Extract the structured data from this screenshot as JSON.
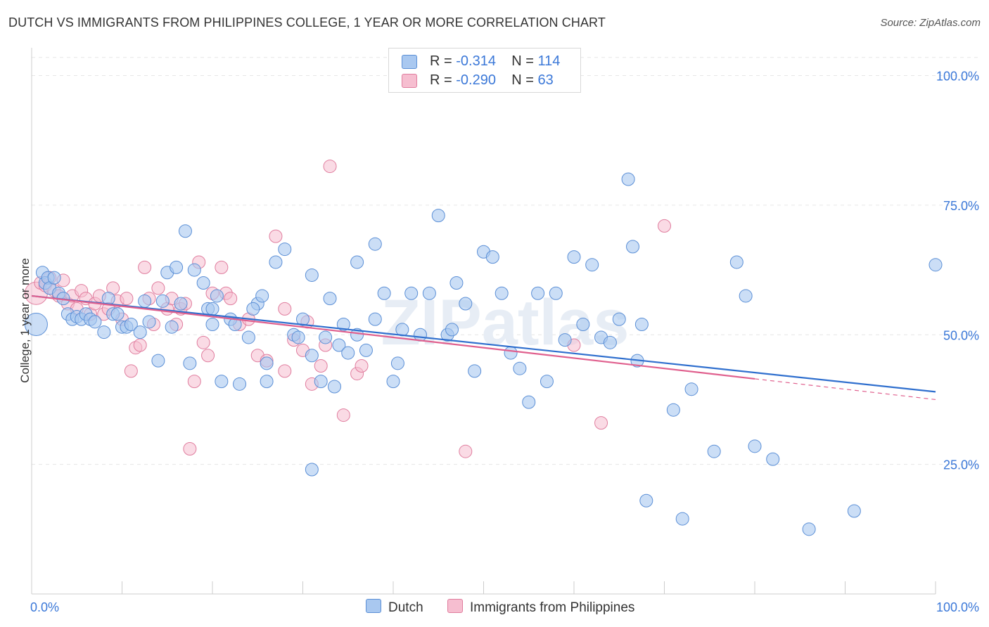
{
  "title": "DUTCH VS IMMIGRANTS FROM PHILIPPINES COLLEGE, 1 YEAR OR MORE CORRELATION CHART",
  "source": "Source: ZipAtlas.com",
  "watermark": "ZIPatlas",
  "legend_top": {
    "row1": {
      "r_label": "R = ",
      "r_value": "-0.314",
      "n_label": "N = ",
      "n_value": "114"
    },
    "row2": {
      "r_label": "R = ",
      "r_value": "-0.290",
      "n_label": "N = ",
      "n_value": "63"
    }
  },
  "legend_bottom": {
    "dutch": "Dutch",
    "philippines": "Immigrants from Philippines"
  },
  "colors": {
    "dutch_fill": "#a9c8f0",
    "dutch_stroke": "#5b8fd6",
    "dutch_line": "#2f6fce",
    "phil_fill": "#f6bed0",
    "phil_stroke": "#e07d9e",
    "phil_line": "#e0608e",
    "accent_text": "#3b78d8",
    "grid": "#e6e6e6"
  },
  "chart_data": {
    "type": "scatter",
    "title": "DUTCH VS IMMIGRANTS FROM PHILIPPINES COLLEGE, 1 YEAR OR MORE CORRELATION CHART",
    "xlabel": "",
    "ylabel": "College, 1 year or more",
    "xlim": [
      0,
      100
    ],
    "ylim": [
      0,
      104
    ],
    "x_tick_labels": [
      "0.0%",
      "100.0%"
    ],
    "y_ticks": [
      25,
      50,
      75,
      100
    ],
    "y_tick_labels": [
      "25.0%",
      "50.0%",
      "75.0%",
      "100.0%"
    ],
    "grid": true,
    "legend_position": "top-center",
    "series": [
      {
        "name": "Dutch",
        "R": -0.314,
        "N": 114,
        "trend": {
          "x": [
            0,
            100
          ],
          "y": [
            57.5,
            39.0
          ]
        },
        "points": [
          [
            0.5,
            52
          ],
          [
            1.2,
            62
          ],
          [
            1.5,
            60
          ],
          [
            1.8,
            61
          ],
          [
            2,
            59
          ],
          [
            2.5,
            61
          ],
          [
            3,
            58
          ],
          [
            3.5,
            57
          ],
          [
            4,
            54
          ],
          [
            4.5,
            53
          ],
          [
            5,
            53.5
          ],
          [
            5.5,
            53
          ],
          [
            6,
            54
          ],
          [
            6.5,
            53
          ],
          [
            7,
            52.5
          ],
          [
            8,
            50.5
          ],
          [
            8.5,
            57
          ],
          [
            9,
            54
          ],
          [
            9.5,
            54
          ],
          [
            10,
            51.5
          ],
          [
            10.5,
            51.5
          ],
          [
            11,
            52
          ],
          [
            12,
            50.5
          ],
          [
            12.5,
            56.5
          ],
          [
            13,
            52.5
          ],
          [
            14,
            45
          ],
          [
            14.5,
            56.5
          ],
          [
            15,
            62
          ],
          [
            15.5,
            51.5
          ],
          [
            16,
            63
          ],
          [
            16.5,
            56
          ],
          [
            17,
            70
          ],
          [
            17.5,
            44.5
          ],
          [
            18,
            62.5
          ],
          [
            19,
            60
          ],
          [
            19.5,
            55
          ],
          [
            20,
            55
          ],
          [
            20.5,
            57.5
          ],
          [
            20,
            52
          ],
          [
            21,
            41
          ],
          [
            22,
            53
          ],
          [
            22.5,
            52
          ],
          [
            23,
            40.5
          ],
          [
            24,
            49.5
          ],
          [
            25,
            56
          ],
          [
            25.5,
            57.5
          ],
          [
            26,
            44.5
          ],
          [
            27,
            64
          ],
          [
            24.5,
            55
          ],
          [
            28,
            66.5
          ],
          [
            29,
            50
          ],
          [
            29.5,
            49.5
          ],
          [
            30,
            53
          ],
          [
            31,
            61.5
          ],
          [
            31,
            46
          ],
          [
            32,
            41
          ],
          [
            32.5,
            49.5
          ],
          [
            33,
            57
          ],
          [
            34,
            48
          ],
          [
            34.5,
            52
          ],
          [
            35,
            46.5
          ],
          [
            36,
            64
          ],
          [
            36,
            50
          ],
          [
            37,
            47
          ],
          [
            38,
            53
          ],
          [
            38,
            67.5
          ],
          [
            39,
            58
          ],
          [
            40,
            41
          ],
          [
            40.5,
            44.5
          ],
          [
            41,
            51
          ],
          [
            42,
            58
          ],
          [
            43,
            50
          ],
          [
            44,
            58
          ],
          [
            45,
            73
          ],
          [
            46,
            50
          ],
          [
            46.5,
            51
          ],
          [
            47,
            60
          ],
          [
            48,
            56
          ],
          [
            49,
            43
          ],
          [
            50,
            66
          ],
          [
            51,
            65
          ],
          [
            52,
            58
          ],
          [
            53,
            46.5
          ],
          [
            54,
            43.5
          ],
          [
            55,
            37
          ],
          [
            56,
            58
          ],
          [
            57,
            41
          ],
          [
            58,
            58
          ],
          [
            59,
            49
          ],
          [
            60,
            65
          ],
          [
            61,
            52
          ],
          [
            62,
            63.5
          ],
          [
            63,
            49.5
          ],
          [
            64,
            48.5
          ],
          [
            65,
            53
          ],
          [
            66,
            80
          ],
          [
            66.5,
            67
          ],
          [
            67,
            45
          ],
          [
            67.5,
            52
          ],
          [
            68,
            18
          ],
          [
            71,
            35.5
          ],
          [
            72,
            14.5
          ],
          [
            73,
            39.5
          ],
          [
            75.5,
            27.5
          ],
          [
            78,
            64
          ],
          [
            79,
            57.5
          ],
          [
            80,
            28.5
          ],
          [
            82,
            26
          ],
          [
            86,
            12.5
          ],
          [
            91,
            16
          ],
          [
            100,
            63.5
          ],
          [
            31,
            24
          ],
          [
            26,
            41
          ],
          [
            33.5,
            40
          ]
        ]
      },
      {
        "name": "Immigrants from Philippines",
        "R": -0.29,
        "N": 63,
        "trend": {
          "x": [
            0,
            80
          ],
          "y": [
            57.5,
            41.5
          ]
        },
        "trend_dashed": {
          "x": [
            80,
            100
          ],
          "y": [
            41.5,
            37.5
          ]
        },
        "points": [
          [
            0.5,
            58
          ],
          [
            1,
            60
          ],
          [
            1.5,
            59.5
          ],
          [
            2,
            61
          ],
          [
            2.5,
            58.5
          ],
          [
            3,
            57.5
          ],
          [
            3.5,
            60.5
          ],
          [
            4,
            56
          ],
          [
            4.5,
            57.5
          ],
          [
            5,
            55
          ],
          [
            5.5,
            58.5
          ],
          [
            6,
            57
          ],
          [
            6.5,
            54
          ],
          [
            7,
            56
          ],
          [
            7.5,
            57.5
          ],
          [
            8,
            54
          ],
          [
            8.5,
            55
          ],
          [
            9,
            59
          ],
          [
            9.5,
            56.5
          ],
          [
            10,
            53
          ],
          [
            10.5,
            57
          ],
          [
            11,
            43
          ],
          [
            11.5,
            47.5
          ],
          [
            12,
            48
          ],
          [
            12.5,
            63
          ],
          [
            13,
            57
          ],
          [
            13.5,
            52
          ],
          [
            14,
            59
          ],
          [
            15,
            55
          ],
          [
            15.5,
            57
          ],
          [
            16,
            52
          ],
          [
            16.5,
            55
          ],
          [
            17,
            56
          ],
          [
            17.5,
            28
          ],
          [
            18,
            41
          ],
          [
            18.5,
            64
          ],
          [
            19,
            48.5
          ],
          [
            19.5,
            46
          ],
          [
            20,
            58
          ],
          [
            21,
            63
          ],
          [
            21.5,
            58
          ],
          [
            22,
            57
          ],
          [
            23,
            52
          ],
          [
            24,
            53
          ],
          [
            25,
            46
          ],
          [
            26,
            45
          ],
          [
            27,
            69
          ],
          [
            28,
            55
          ],
          [
            28,
            43
          ],
          [
            29,
            49
          ],
          [
            30,
            47
          ],
          [
            30.5,
            52.5
          ],
          [
            31,
            40.5
          ],
          [
            32,
            44
          ],
          [
            32.5,
            48
          ],
          [
            33,
            82.5
          ],
          [
            34.5,
            34.5
          ],
          [
            36,
            42.5
          ],
          [
            36.5,
            44
          ],
          [
            48,
            27.5
          ],
          [
            60,
            48
          ],
          [
            70,
            71
          ],
          [
            63,
            33
          ]
        ]
      }
    ]
  }
}
